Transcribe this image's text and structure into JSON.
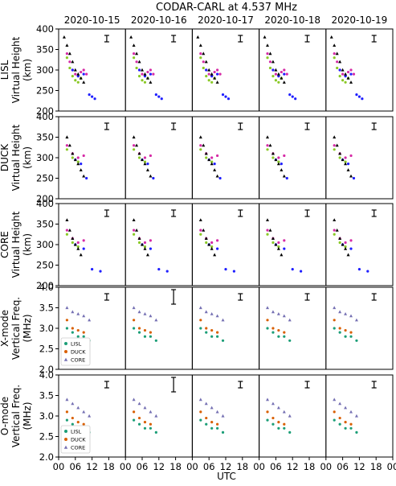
{
  "figure": {
    "title": "CODAR-CARL at 4.537 MHz",
    "dates": [
      "2020-10-15",
      "2020-10-16",
      "2020-10-17",
      "2020-10-18",
      "2020-10-19"
    ],
    "xlabel": "UTC",
    "x_ticks": [
      "00",
      "06",
      "12",
      "18"
    ],
    "x_ticks_last": [
      "00",
      "06",
      "12",
      "18",
      "00"
    ]
  },
  "chart_data": [
    {
      "type": "scatter",
      "title": "",
      "ylabel_lines": [
        "LISL",
        "Virtual Height",
        "(km)"
      ],
      "ylim": [
        200,
        400
      ],
      "yticks": [
        "400",
        "350",
        "300",
        "250",
        "200"
      ],
      "xlim": [
        0,
        24
      ],
      "grid": false,
      "series": [
        {
          "name": "",
          "color": "#d62ba6",
          "values": [
            [
              3,
              340
            ],
            [
              4,
              320
            ],
            [
              5,
              300
            ],
            [
              6,
              290
            ],
            [
              7,
              285
            ],
            [
              8,
              295
            ],
            [
              9,
              300
            ],
            [
              10,
              290
            ]
          ]
        },
        {
          "name": "",
          "color": "#8ac926",
          "values": [
            [
              3,
              330
            ],
            [
              4,
              305
            ],
            [
              5,
              285
            ],
            [
              6,
              275
            ],
            [
              7,
              270
            ],
            [
              8,
              280
            ]
          ]
        },
        {
          "name": "",
          "color": "#1f1fff",
          "values": [
            [
              5,
              300
            ],
            [
              7,
              285
            ],
            [
              9,
              290
            ],
            [
              11,
              240
            ],
            [
              12,
              235
            ],
            [
              13,
              230
            ]
          ]
        },
        {
          "name": "",
          "color": "#000000",
          "values": [
            [
              2,
              380
            ],
            [
              3,
              360
            ],
            [
              4,
              340
            ],
            [
              5,
              320
            ],
            [
              6,
              300
            ],
            [
              7,
              290
            ],
            [
              8,
              280
            ],
            [
              9,
              270
            ]
          ]
        }
      ]
    },
    {
      "type": "scatter",
      "title": "",
      "ylabel_lines": [
        "DUCK",
        "Virtual Height",
        "(km)"
      ],
      "ylim": [
        200,
        400
      ],
      "yticks": [
        "400",
        "350",
        "300",
        "250",
        "200"
      ],
      "xlim": [
        0,
        24
      ],
      "grid": false,
      "series": [
        {
          "name": "",
          "color": "#d62ba6",
          "values": [
            [
              3,
              330
            ],
            [
              5,
              310
            ],
            [
              7,
              300
            ],
            [
              9,
              305
            ]
          ]
        },
        {
          "name": "",
          "color": "#8ac926",
          "values": [
            [
              3,
              320
            ],
            [
              5,
              300
            ],
            [
              7,
              290
            ]
          ]
        },
        {
          "name": "",
          "color": "#1f1fff",
          "values": [
            [
              6,
              295
            ],
            [
              8,
              285
            ],
            [
              10,
              250
            ]
          ]
        },
        {
          "name": "",
          "color": "#000000",
          "values": [
            [
              3,
              350
            ],
            [
              4,
              330
            ],
            [
              5,
              310
            ],
            [
              6,
              295
            ],
            [
              7,
              285
            ],
            [
              8,
              270
            ],
            [
              9,
              255
            ]
          ]
        }
      ]
    },
    {
      "type": "scatter",
      "title": "",
      "ylabel_lines": [
        "CORE",
        "Virtual Height",
        "(km)"
      ],
      "ylim": [
        200,
        400
      ],
      "yticks": [
        "400",
        "350",
        "300",
        "250",
        "200"
      ],
      "xlim": [
        0,
        24
      ],
      "grid": false,
      "series": [
        {
          "name": "",
          "color": "#d62ba6",
          "values": [
            [
              3,
              335
            ],
            [
              5,
              315
            ],
            [
              7,
              305
            ],
            [
              9,
              310
            ]
          ]
        },
        {
          "name": "",
          "color": "#8ac926",
          "values": [
            [
              3,
              325
            ],
            [
              5,
              305
            ],
            [
              7,
              295
            ]
          ]
        },
        {
          "name": "",
          "color": "#1f1fff",
          "values": [
            [
              6,
              300
            ],
            [
              9,
              290
            ],
            [
              12,
              240
            ],
            [
              15,
              235
            ]
          ]
        },
        {
          "name": "",
          "color": "#000000",
          "values": [
            [
              3,
              360
            ],
            [
              4,
              335
            ],
            [
              5,
              315
            ],
            [
              6,
              300
            ],
            [
              7,
              290
            ],
            [
              8,
              275
            ]
          ]
        }
      ]
    },
    {
      "type": "scatter",
      "title": "",
      "ylabel_lines": [
        "X-mode",
        "Vertical Freq.",
        "(MHz)"
      ],
      "ylim": [
        2.0,
        4.0
      ],
      "yticks": [
        "4.0",
        "3.5",
        "3.0",
        "2.5",
        "2.0"
      ],
      "xlim": [
        0,
        24
      ],
      "grid": false,
      "legend": {
        "placement": "lower-left",
        "entries": [
          "LISL",
          "DUCK",
          "CORE"
        ]
      },
      "series": [
        {
          "name": "LISL",
          "color": "#1b9e77",
          "values": [
            [
              3,
              3.0
            ],
            [
              5,
              2.9
            ],
            [
              7,
              2.8
            ],
            [
              9,
              2.8
            ],
            [
              11,
              2.7
            ]
          ]
        },
        {
          "name": "DUCK",
          "color": "#d95f02",
          "values": [
            [
              3,
              3.2
            ],
            [
              5,
              3.0
            ],
            [
              7,
              2.95
            ],
            [
              9,
              2.9
            ]
          ]
        },
        {
          "name": "CORE",
          "color": "#7570b3",
          "values": [
            [
              3,
              3.5
            ],
            [
              5,
              3.4
            ],
            [
              7,
              3.35
            ],
            [
              9,
              3.3
            ],
            [
              11,
              3.2
            ]
          ]
        }
      ]
    },
    {
      "type": "scatter",
      "title": "",
      "ylabel_lines": [
        "O-mode",
        "Vertical Freq.",
        "(MHz)"
      ],
      "ylim": [
        2.0,
        4.0
      ],
      "yticks": [
        "4.0",
        "3.5",
        "3.0",
        "2.5",
        "2.0"
      ],
      "xlim": [
        0,
        24
      ],
      "grid": false,
      "legend": {
        "placement": "lower-left",
        "entries": [
          "LISL",
          "DUCK",
          "CORE"
        ]
      },
      "series": [
        {
          "name": "LISL",
          "color": "#1b9e77",
          "values": [
            [
              3,
              2.9
            ],
            [
              5,
              2.8
            ],
            [
              7,
              2.7
            ],
            [
              9,
              2.7
            ],
            [
              11,
              2.6
            ]
          ]
        },
        {
          "name": "DUCK",
          "color": "#d95f02",
          "values": [
            [
              3,
              3.1
            ],
            [
              5,
              2.95
            ],
            [
              7,
              2.85
            ],
            [
              9,
              2.8
            ]
          ]
        },
        {
          "name": "CORE",
          "color": "#7570b3",
          "values": [
            [
              3,
              3.4
            ],
            [
              5,
              3.3
            ],
            [
              7,
              3.2
            ],
            [
              9,
              3.1
            ],
            [
              11,
              3.0
            ]
          ]
        }
      ]
    }
  ]
}
